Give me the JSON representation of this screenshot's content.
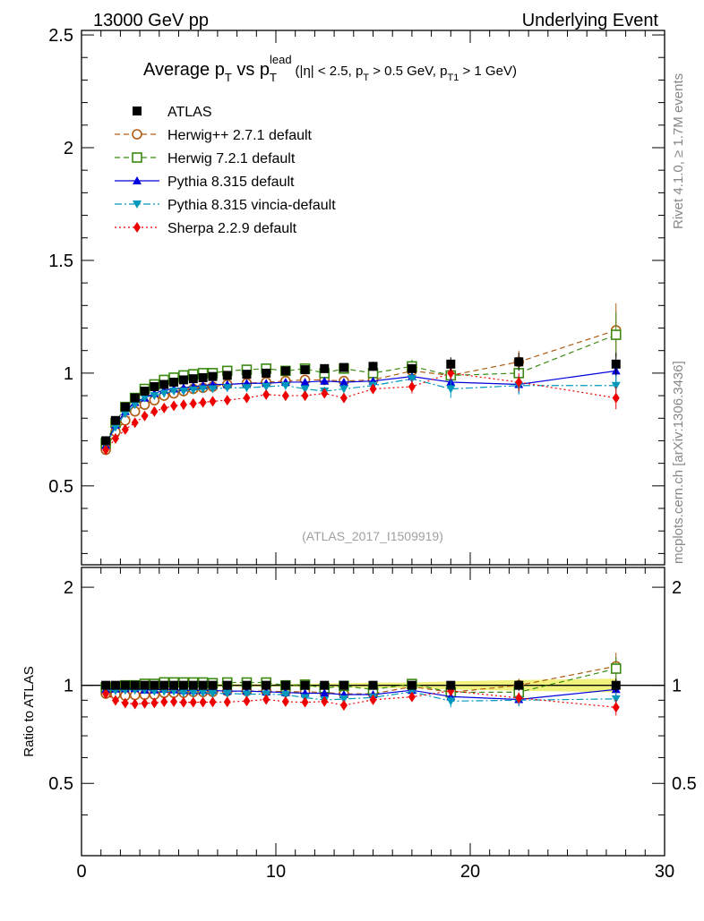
{
  "header": {
    "left": "13000 GeV pp",
    "right": "Underlying Event"
  },
  "side_labels": {
    "rivet": "Rivet 4.1.0, ≥ 1.7M events",
    "mcplots": "mcplots.cern.ch [arXiv:1306.3436]"
  },
  "chart_data": {
    "type": "scatter",
    "title": {
      "main": "Average p",
      "sub1": "T",
      "mid": " vs p",
      "sub2": "T",
      "sup2": "lead",
      "cuts_a": "(|η| < 2.5, p",
      "cuts_sub_a": "T",
      "cuts_b": " > 0.5 GeV, p",
      "cuts_sub_b": "T1",
      "cuts_c": " > 1 GeV)"
    },
    "analysis_label": "(ATLAS_2017_I1509919)",
    "ratio_ylabel": "Ratio to ATLAS",
    "xlim": [
      0,
      30
    ],
    "ylim_main": [
      0.15,
      2.52
    ],
    "ylim_ratio": [
      0.3,
      2.3
    ],
    "x_ticks": [
      "0",
      "10",
      "20",
      "30"
    ],
    "y_ticks_main": [
      "0.5",
      "1",
      "1.5",
      "2",
      "2.5"
    ],
    "y_ticks_ratio": [
      "0.5",
      "1",
      "2"
    ],
    "x": [
      1.25,
      1.75,
      2.25,
      2.75,
      3.25,
      3.75,
      4.25,
      4.75,
      5.25,
      5.75,
      6.25,
      6.75,
      7.5,
      8.5,
      9.5,
      10.5,
      11.5,
      12.5,
      13.5,
      15.0,
      17.0,
      19.0,
      22.5,
      27.5
    ],
    "series": [
      {
        "name": "ATLAS",
        "color": "#000000",
        "marker": "square-filled",
        "line": "none",
        "values": [
          0.7,
          0.79,
          0.85,
          0.89,
          0.92,
          0.94,
          0.95,
          0.96,
          0.97,
          0.975,
          0.98,
          0.985,
          0.99,
          0.995,
          1.0,
          1.01,
          1.015,
          1.02,
          1.025,
          1.03,
          1.02,
          1.04,
          1.05,
          1.04
        ],
        "errors": [
          0.01,
          0.01,
          0.01,
          0.01,
          0.01,
          0.01,
          0.01,
          0.01,
          0.01,
          0.01,
          0.01,
          0.01,
          0.01,
          0.01,
          0.01,
          0.01,
          0.01,
          0.015,
          0.015,
          0.02,
          0.02,
          0.03,
          0.04,
          0.05
        ]
      },
      {
        "name": "Herwig++ 2.7.1 default",
        "color": "#b05a10",
        "marker": "circle-open",
        "line": "dashed",
        "values": [
          0.66,
          0.74,
          0.79,
          0.83,
          0.86,
          0.88,
          0.9,
          0.91,
          0.92,
          0.93,
          0.935,
          0.94,
          0.95,
          0.955,
          0.96,
          0.965,
          0.97,
          0.97,
          0.965,
          0.97,
          1.01,
          0.99,
          1.05,
          1.19
        ],
        "errors": [
          0,
          0,
          0,
          0,
          0,
          0,
          0,
          0,
          0,
          0,
          0,
          0,
          0,
          0,
          0,
          0,
          0,
          0,
          0,
          0.02,
          0.03,
          0.03,
          0.05,
          0.12
        ]
      },
      {
        "name": "Herwig 7.2.1 default",
        "color": "#3a8a10",
        "marker": "square-open",
        "line": "dashed",
        "values": [
          0.69,
          0.78,
          0.85,
          0.89,
          0.93,
          0.95,
          0.97,
          0.98,
          0.99,
          0.995,
          1.0,
          1.0,
          1.01,
          1.015,
          1.02,
          1.01,
          1.02,
          1.0,
          1.02,
          1.0,
          1.03,
          0.99,
          1.0,
          1.17
        ],
        "errors": [
          0,
          0,
          0,
          0,
          0,
          0,
          0,
          0,
          0,
          0,
          0,
          0,
          0,
          0,
          0,
          0.01,
          0.01,
          0.01,
          0.01,
          0.02,
          0.03,
          0.03,
          0.04,
          0.1
        ]
      },
      {
        "name": "Pythia 8.315 default",
        "color": "#0000dd",
        "marker": "triangle-up",
        "line": "solid",
        "values": [
          0.68,
          0.77,
          0.83,
          0.87,
          0.89,
          0.91,
          0.925,
          0.93,
          0.935,
          0.94,
          0.945,
          0.95,
          0.95,
          0.955,
          0.955,
          0.96,
          0.96,
          0.965,
          0.96,
          0.965,
          0.985,
          0.96,
          0.95,
          1.01
        ],
        "errors": [
          0,
          0,
          0,
          0,
          0,
          0,
          0,
          0,
          0,
          0,
          0,
          0,
          0,
          0,
          0,
          0,
          0,
          0.01,
          0.01,
          0.01,
          0.02,
          0.03,
          0.04,
          0.05
        ]
      },
      {
        "name": "Pythia 8.315 vincia-default",
        "color": "#0099bb",
        "marker": "triangle-down",
        "line": "dashdot",
        "values": [
          0.68,
          0.76,
          0.82,
          0.86,
          0.89,
          0.9,
          0.91,
          0.92,
          0.92,
          0.925,
          0.93,
          0.93,
          0.935,
          0.935,
          0.94,
          0.945,
          0.93,
          0.92,
          0.93,
          0.945,
          0.975,
          0.93,
          0.945,
          0.945
        ],
        "errors": [
          0,
          0,
          0,
          0,
          0,
          0,
          0,
          0,
          0,
          0,
          0,
          0,
          0,
          0,
          0,
          0,
          0,
          0.02,
          0.02,
          0.02,
          0.03,
          0.04,
          0.04,
          0.05
        ]
      },
      {
        "name": "Sherpa 2.2.9 default",
        "color": "#ee0000",
        "marker": "diamond",
        "line": "dotted",
        "values": [
          0.66,
          0.71,
          0.75,
          0.78,
          0.81,
          0.83,
          0.845,
          0.855,
          0.86,
          0.865,
          0.87,
          0.875,
          0.88,
          0.89,
          0.905,
          0.9,
          0.9,
          0.91,
          0.89,
          0.93,
          0.94,
          1.0,
          0.96,
          0.89
        ],
        "errors": [
          0,
          0,
          0,
          0,
          0,
          0,
          0,
          0,
          0,
          0,
          0,
          0,
          0,
          0,
          0,
          0,
          0,
          0.02,
          0.02,
          0.02,
          0.03,
          0.03,
          0.04,
          0.05
        ]
      }
    ]
  }
}
